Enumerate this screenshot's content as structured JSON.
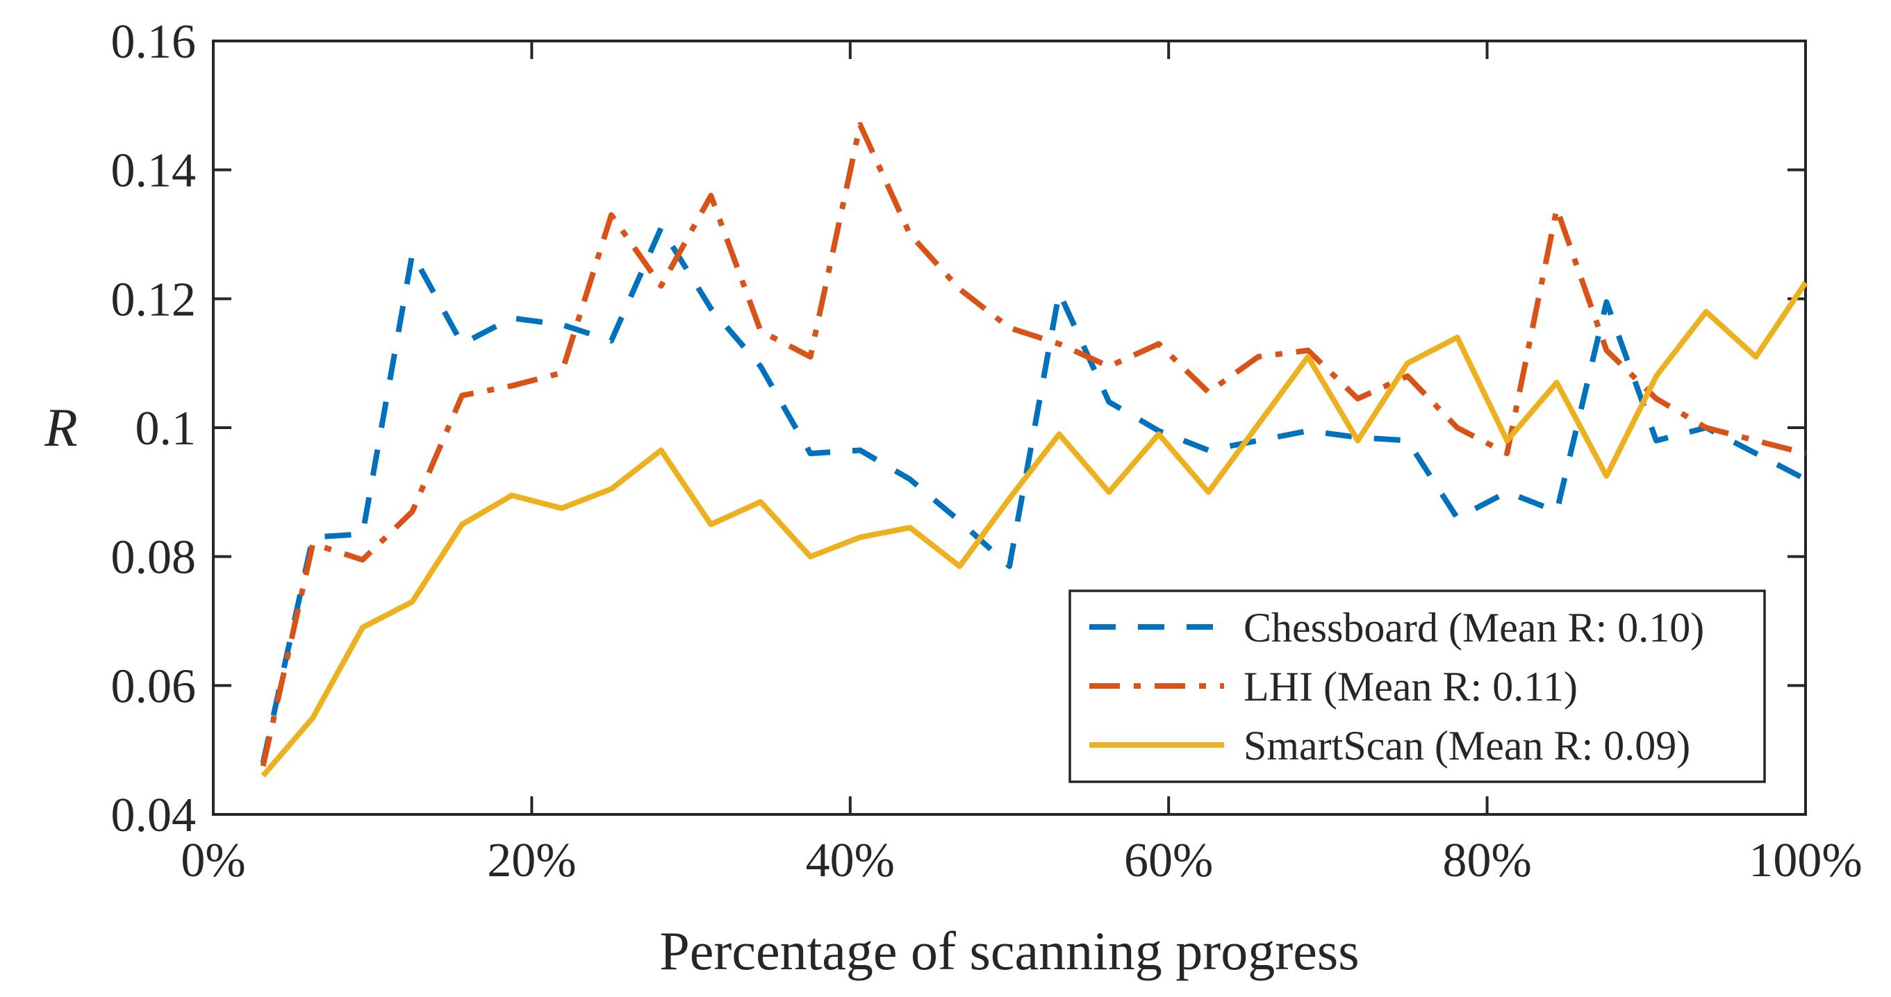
{
  "figure": {
    "background": "#ffffff",
    "axis_color": "#262626",
    "text_color": "#262626"
  },
  "chart_data": {
    "type": "line",
    "title": "",
    "xlabel": "Percentage of scanning progress",
    "ylabel": "R",
    "xlim": [
      0,
      100
    ],
    "ylim": [
      0.04,
      0.16
    ],
    "grid": false,
    "legend_position": "inside-lower-right",
    "x_tick_labels": [
      "0%",
      "20%",
      "40%",
      "60%",
      "80%",
      "100%"
    ],
    "x_tick_values": [
      0,
      20,
      40,
      60,
      80,
      100
    ],
    "y_tick_labels": [
      "0.04",
      "0.06",
      "0.08",
      "0.1",
      "0.12",
      "0.14",
      "0.16"
    ],
    "y_tick_values": [
      0.04,
      0.06,
      0.08,
      0.1,
      0.12,
      0.14,
      0.16
    ],
    "x": [
      3.125,
      6.25,
      9.375,
      12.5,
      15.625,
      18.75,
      21.875,
      25,
      28.125,
      31.25,
      34.375,
      37.5,
      40.625,
      43.75,
      46.875,
      50,
      53.125,
      56.25,
      59.375,
      62.5,
      65.625,
      68.75,
      71.875,
      75,
      78.125,
      81.25,
      84.375,
      87.5,
      90.625,
      93.75,
      96.875,
      100
    ],
    "series": [
      {
        "name": "Chessboard (Mean R: 0.10)",
        "mean_r": "0.10",
        "color": "#0072BD",
        "line_style": "dashed",
        "values": [
          0.048,
          0.083,
          0.0835,
          0.127,
          0.113,
          0.117,
          0.116,
          0.1135,
          0.131,
          0.1185,
          0.1095,
          0.096,
          0.0965,
          0.092,
          0.0855,
          0.0785,
          0.121,
          0.104,
          0.0995,
          0.0965,
          0.098,
          0.0995,
          0.0985,
          0.098,
          0.086,
          0.09,
          0.087,
          0.1195,
          0.098,
          0.1,
          0.096,
          0.092
        ]
      },
      {
        "name": "LHI (Mean R: 0.11)",
        "mean_r": "0.11",
        "color": "#D95319",
        "line_style": "dashdot",
        "values": [
          0.0475,
          0.082,
          0.0795,
          0.087,
          0.105,
          0.1065,
          0.1085,
          0.133,
          0.122,
          0.136,
          0.115,
          0.111,
          0.147,
          0.13,
          0.1215,
          0.1155,
          0.113,
          0.1095,
          0.113,
          0.1055,
          0.111,
          0.112,
          0.1045,
          0.108,
          0.1,
          0.096,
          0.134,
          0.112,
          0.1045,
          0.1,
          0.098,
          0.096
        ]
      },
      {
        "name": "SmartScan (Mean R: 0.09)",
        "mean_r": "0.09",
        "color": "#EDB120",
        "line_style": "solid",
        "values": [
          0.046,
          0.055,
          0.069,
          0.073,
          0.085,
          0.0895,
          0.0875,
          0.0905,
          0.0965,
          0.085,
          0.0885,
          0.08,
          0.083,
          0.0845,
          0.0785,
          0.089,
          0.099,
          0.09,
          0.099,
          0.09,
          0.1005,
          0.111,
          0.098,
          0.11,
          0.114,
          0.098,
          0.107,
          0.0925,
          0.108,
          0.118,
          0.111,
          0.1225
        ]
      }
    ]
  }
}
